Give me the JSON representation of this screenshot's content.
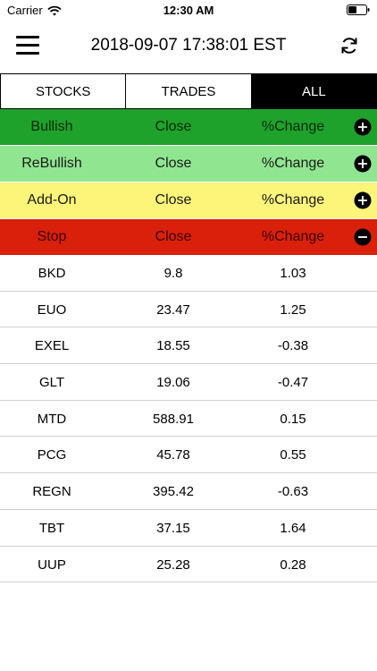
{
  "status_bar": {
    "carrier": "Carrier",
    "time": "12:30 AM"
  },
  "header": {
    "title": "2018-09-07 17:38:01 EST"
  },
  "tabs": [
    {
      "label": "STOCKS",
      "active": false
    },
    {
      "label": "TRADES",
      "active": false
    },
    {
      "label": "ALL",
      "active": true
    }
  ],
  "categories": [
    {
      "name": "Bullish",
      "close": "Close",
      "change": "%Change",
      "color": "#1fa22c",
      "text_color": "#0a2a0a",
      "toggle": "plus"
    },
    {
      "name": "ReBullish",
      "close": "Close",
      "change": "%Change",
      "color": "#90e690",
      "text_color": "#1a1a1a",
      "toggle": "plus"
    },
    {
      "name": "Add-On",
      "close": "Close",
      "change": "%Change",
      "color": "#fcf57a",
      "text_color": "#1a1a1a",
      "toggle": "plus"
    },
    {
      "name": "Stop",
      "close": "Close",
      "change": "%Change",
      "color": "#d9200a",
      "text_color": "#3a0500",
      "toggle": "minus"
    }
  ],
  "rows": [
    {
      "symbol": "BKD",
      "close": "9.8",
      "change": "1.03"
    },
    {
      "symbol": "EUO",
      "close": "23.47",
      "change": "1.25"
    },
    {
      "symbol": "EXEL",
      "close": "18.55",
      "change": "-0.38"
    },
    {
      "symbol": "GLT",
      "close": "19.06",
      "change": "-0.47"
    },
    {
      "symbol": "MTD",
      "close": "588.91",
      "change": "0.15"
    },
    {
      "symbol": "PCG",
      "close": "45.78",
      "change": "0.55"
    },
    {
      "symbol": "REGN",
      "close": "395.42",
      "change": "-0.63"
    },
    {
      "symbol": "TBT",
      "close": "37.15",
      "change": "1.64"
    },
    {
      "symbol": "UUP",
      "close": "25.28",
      "change": "0.28"
    }
  ]
}
